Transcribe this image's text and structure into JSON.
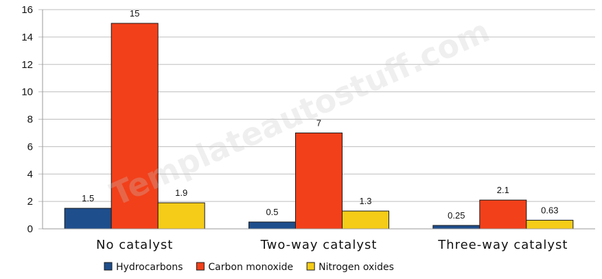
{
  "chart_data": {
    "type": "bar",
    "categories": [
      "No catalyst",
      "Two-way catalyst",
      "Three-way catalyst"
    ],
    "series": [
      {
        "name": "Hydrocarbons",
        "values": [
          1.5,
          0.5,
          0.25
        ],
        "color": "#1f4e8c",
        "labels": [
          "1.5",
          "0.5",
          "0.25"
        ]
      },
      {
        "name": "Carbon monoxide",
        "values": [
          15,
          7,
          2.1
        ],
        "color": "#f2401a",
        "labels": [
          "15",
          "7",
          "2.1"
        ]
      },
      {
        "name": "Nitrogen oxides",
        "values": [
          1.9,
          1.3,
          0.63
        ],
        "color": "#f5cc17",
        "labels": [
          "1.9",
          "1.3",
          "0.63"
        ]
      }
    ],
    "ylim": [
      0,
      16
    ],
    "yticks": [
      "0",
      "2",
      "4",
      "6",
      "8",
      "10",
      "12",
      "14",
      "16"
    ],
    "grid": true,
    "legend_position": "bottom",
    "watermark": "Templateautostuff.com"
  }
}
